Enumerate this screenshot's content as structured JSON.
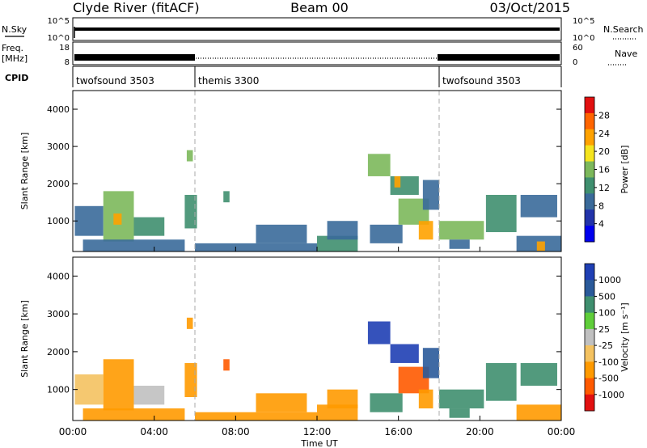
{
  "header": {
    "station": "Clyde River (fitACF)",
    "beam": "Beam 00",
    "date": "03/Oct/2015"
  },
  "top_panels": {
    "nsky": {
      "label": "N.Sky",
      "right_label": "N.Search",
      "left_ticks": [
        "10^5",
        "10^0"
      ],
      "right_ticks": [
        "10^5",
        "10^0"
      ]
    },
    "freq": {
      "label_line1": "Freq.",
      "label_line2": "[MHz]",
      "right_label": "Nave",
      "left_ticks": [
        "18",
        "8"
      ],
      "right_ticks": [
        "60",
        "0"
      ]
    },
    "cpid": {
      "label": "CPID",
      "segments": [
        {
          "name": "twofsound 3503",
          "start_hour": 0,
          "end_hour": 6
        },
        {
          "name": "themis 3300",
          "start_hour": 6,
          "end_hour": 18
        },
        {
          "name": "twofsound 3503",
          "start_hour": 18,
          "end_hour": 24
        }
      ]
    }
  },
  "x_axis": {
    "label": "Time UT",
    "ticks": [
      "00:00",
      "04:00",
      "08:00",
      "12:00",
      "16:00",
      "20:00",
      "00:00"
    ],
    "range_hours": [
      0,
      24
    ]
  },
  "chart_data": [
    {
      "type": "heatmap",
      "ylabel": "Slant Range [km]",
      "ylim": [
        180,
        4500
      ],
      "yticks": [
        "1000",
        "2000",
        "3000",
        "4000"
      ],
      "colorbar": {
        "label": "Power [dB]",
        "ticks": [
          "28",
          "24",
          "20",
          "16",
          "12",
          "8",
          "4"
        ],
        "colors": [
          "#0000ee",
          "#2233aa",
          "#3a6a9a",
          "#3f8f6f",
          "#7cb85b",
          "#f5e41e",
          "#ffa200",
          "#ff6500",
          "#e21010"
        ]
      },
      "vertical_markers_hours": [
        6,
        18
      ],
      "regions": [
        {
          "t0": 0.1,
          "t1": 1.5,
          "r0": 600,
          "r1": 1400,
          "v": 12
        },
        {
          "t0": 1.5,
          "t1": 3.0,
          "r0": 450,
          "r1": 1800,
          "v": 18
        },
        {
          "t0": 3.0,
          "t1": 4.5,
          "r0": 600,
          "r1": 1100,
          "v": 14
        },
        {
          "t0": 2.0,
          "t1": 2.4,
          "r0": 900,
          "r1": 1200,
          "v": 26
        },
        {
          "t0": 5.5,
          "t1": 6.1,
          "r0": 800,
          "r1": 1700,
          "v": 16
        },
        {
          "t0": 5.6,
          "t1": 5.9,
          "r0": 2600,
          "r1": 2900,
          "v": 18
        },
        {
          "t0": 7.4,
          "t1": 7.7,
          "r0": 1500,
          "r1": 1800,
          "v": 14
        },
        {
          "t0": 0.5,
          "t1": 5.5,
          "r0": 180,
          "r1": 500,
          "v": 10
        },
        {
          "t0": 6.0,
          "t1": 12.0,
          "r0": 180,
          "r1": 400,
          "v": 12
        },
        {
          "t0": 9.0,
          "t1": 11.5,
          "r0": 400,
          "r1": 900,
          "v": 10
        },
        {
          "t0": 12.0,
          "t1": 14.0,
          "r0": 180,
          "r1": 600,
          "v": 14
        },
        {
          "t0": 12.5,
          "t1": 14.0,
          "r0": 500,
          "r1": 1000,
          "v": 10
        },
        {
          "t0": 14.5,
          "t1": 15.6,
          "r0": 2200,
          "r1": 2800,
          "v": 20
        },
        {
          "t0": 15.6,
          "t1": 17.0,
          "r0": 1700,
          "r1": 2200,
          "v": 14
        },
        {
          "t0": 15.8,
          "t1": 16.1,
          "r0": 1900,
          "r1": 2200,
          "v": 26
        },
        {
          "t0": 14.6,
          "t1": 16.2,
          "r0": 400,
          "r1": 900,
          "v": 10
        },
        {
          "t0": 16.0,
          "t1": 17.5,
          "r0": 900,
          "r1": 1600,
          "v": 18
        },
        {
          "t0": 17.0,
          "t1": 17.7,
          "r0": 500,
          "r1": 1000,
          "v": 26
        },
        {
          "t0": 17.2,
          "t1": 18.0,
          "r0": 1300,
          "r1": 2100,
          "v": 12
        },
        {
          "t0": 18.0,
          "t1": 20.2,
          "r0": 500,
          "r1": 1000,
          "v": 18
        },
        {
          "t0": 18.5,
          "t1": 19.5,
          "r0": 250,
          "r1": 500,
          "v": 12
        },
        {
          "t0": 20.3,
          "t1": 21.8,
          "r0": 700,
          "r1": 1700,
          "v": 14
        },
        {
          "t0": 22.0,
          "t1": 23.8,
          "r0": 1100,
          "r1": 1700,
          "v": 12
        },
        {
          "t0": 21.8,
          "t1": 24.0,
          "r0": 180,
          "r1": 600,
          "v": 10
        },
        {
          "t0": 22.8,
          "t1": 23.2,
          "r0": 200,
          "r1": 450,
          "v": 26
        }
      ]
    },
    {
      "type": "heatmap",
      "ylabel": "Slant Range [km]",
      "ylim": [
        180,
        4500
      ],
      "yticks": [
        "1000",
        "2000",
        "3000",
        "4000"
      ],
      "colorbar": {
        "label": "Velocity [m s⁻¹]",
        "ticks": [
          "1000",
          "500",
          "100",
          "25",
          "-25",
          "-100",
          "-500",
          "-1000"
        ],
        "colors": [
          "#e21010",
          "#ff5a00",
          "#ff9a00",
          "#f4c260",
          "#c0c0c0",
          "#5fce3a",
          "#3f8f6f",
          "#2a5a9a",
          "#1f3fb4"
        ]
      },
      "vertical_markers_hours": [
        6,
        18
      ],
      "regions": [
        {
          "t0": 0.1,
          "t1": 1.5,
          "r0": 600,
          "r1": 1400,
          "v": -25
        },
        {
          "t0": 1.5,
          "t1": 3.0,
          "r0": 450,
          "r1": 1800,
          "v": -200
        },
        {
          "t0": 3.0,
          "t1": 4.5,
          "r0": 600,
          "r1": 1100,
          "v": 0
        },
        {
          "t0": 5.5,
          "t1": 6.1,
          "r0": 800,
          "r1": 1700,
          "v": -150
        },
        {
          "t0": 5.6,
          "t1": 5.9,
          "r0": 2600,
          "r1": 2900,
          "v": -100
        },
        {
          "t0": 7.4,
          "t1": 7.7,
          "r0": 1500,
          "r1": 1800,
          "v": -300
        },
        {
          "t0": 0.5,
          "t1": 5.5,
          "r0": 180,
          "r1": 500,
          "v": -150
        },
        {
          "t0": 6.0,
          "t1": 12.0,
          "r0": 180,
          "r1": 400,
          "v": -120
        },
        {
          "t0": 9.0,
          "t1": 11.5,
          "r0": 400,
          "r1": 900,
          "v": -150
        },
        {
          "t0": 12.0,
          "t1": 14.0,
          "r0": 180,
          "r1": 600,
          "v": -200
        },
        {
          "t0": 12.5,
          "t1": 14.0,
          "r0": 500,
          "r1": 1000,
          "v": -100
        },
        {
          "t0": 14.5,
          "t1": 15.6,
          "r0": 2200,
          "r1": 2800,
          "v": 900
        },
        {
          "t0": 15.6,
          "t1": 17.0,
          "r0": 1700,
          "r1": 2200,
          "v": 800
        },
        {
          "t0": 14.6,
          "t1": 16.2,
          "r0": 400,
          "r1": 900,
          "v": 200
        },
        {
          "t0": 16.0,
          "t1": 17.5,
          "r0": 900,
          "r1": 1600,
          "v": -400
        },
        {
          "t0": 17.0,
          "t1": 17.7,
          "r0": 500,
          "r1": 1000,
          "v": -150
        },
        {
          "t0": 17.2,
          "t1": 18.0,
          "r0": 1300,
          "r1": 2100,
          "v": 600
        },
        {
          "t0": 18.0,
          "t1": 20.2,
          "r0": 500,
          "r1": 1000,
          "v": 300
        },
        {
          "t0": 18.5,
          "t1": 19.5,
          "r0": 250,
          "r1": 500,
          "v": 200
        },
        {
          "t0": 20.3,
          "t1": 21.8,
          "r0": 700,
          "r1": 1700,
          "v": 150
        },
        {
          "t0": 22.0,
          "t1": 23.8,
          "r0": 1100,
          "r1": 1700,
          "v": 200
        },
        {
          "t0": 21.8,
          "t1": 24.0,
          "r0": 180,
          "r1": 600,
          "v": -150
        }
      ]
    }
  ]
}
